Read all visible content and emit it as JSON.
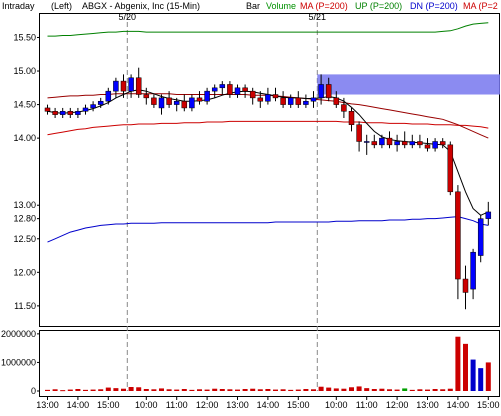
{
  "header": {
    "timeframe": "Intraday",
    "axis_side": "(Left)",
    "symbol_desc": "ABGX - Abgenix, Inc (15-Min)",
    "bar_label": "Bar",
    "volume_label": "Volume",
    "ma_label": "MA (P=200)",
    "up_label": "UP (P=200)",
    "dn_label": "DN (P=200)",
    "ma2_label": "MA (P=2"
  },
  "colors": {
    "up_candle": "#0000ff",
    "down_candle": "#cc0000",
    "ma_short": "#000000",
    "ma_long": "#cc0000",
    "upper_band": "#008000",
    "lower_band": "#0000cc",
    "highlight": "#7777ee",
    "volume_bar": "#cc0000",
    "volume_bar_up": "#0000cc",
    "volume_bar_green": "#00a000"
  },
  "chart_data": {
    "type": "candlestick",
    "title": "ABGX - Abgenix, Inc (15-Min)",
    "price_axis": {
      "ticks": [
        "15.50",
        "15.00",
        "14.50",
        "14.00",
        "13.00",
        "12.80",
        "12.50",
        "12.00",
        "11.50"
      ],
      "tick_values": [
        15.5,
        15.0,
        14.5,
        14.0,
        13.0,
        12.8,
        12.5,
        12.0,
        11.5
      ],
      "range": [
        11.2,
        15.85
      ]
    },
    "volume_axis": {
      "ticks": [
        "2000000",
        "1000000",
        "0"
      ],
      "tick_values": [
        2000000,
        1000000,
        0
      ],
      "range": [
        0,
        2100000
      ]
    },
    "time_axis": {
      "labels": [
        "13:00",
        "14:00",
        "15:00",
        "10:00",
        "11:00",
        "12:00",
        "13:00",
        "14:00",
        "15:00",
        "10:00",
        "11:00",
        "12:00",
        "13:00",
        "14:00",
        "15:00"
      ],
      "label_bar_index": [
        0,
        4,
        8,
        13,
        17,
        21,
        25,
        29,
        33,
        38,
        42,
        46,
        50,
        54,
        58
      ],
      "date_markers": [
        {
          "label": "5/20",
          "bar_index": 11
        },
        {
          "label": "5/21",
          "bar_index": 36
        }
      ]
    },
    "ohlc": [
      [
        14.45,
        14.5,
        14.35,
        14.4
      ],
      [
        14.4,
        14.45,
        14.3,
        14.35
      ],
      [
        14.35,
        14.45,
        14.3,
        14.4
      ],
      [
        14.4,
        14.45,
        14.3,
        14.35
      ],
      [
        14.35,
        14.45,
        14.3,
        14.4
      ],
      [
        14.4,
        14.5,
        14.35,
        14.45
      ],
      [
        14.45,
        14.55,
        14.4,
        14.5
      ],
      [
        14.5,
        14.6,
        14.45,
        14.55
      ],
      [
        14.55,
        14.75,
        14.5,
        14.7
      ],
      [
        14.7,
        14.9,
        14.6,
        14.85
      ],
      [
        14.85,
        14.95,
        14.6,
        14.7
      ],
      [
        14.7,
        14.95,
        14.6,
        14.9
      ],
      [
        14.9,
        15.05,
        14.6,
        14.65
      ],
      [
        14.65,
        14.75,
        14.5,
        14.6
      ],
      [
        14.6,
        14.65,
        14.45,
        14.5
      ],
      [
        14.45,
        14.65,
        14.35,
        14.6
      ],
      [
        14.6,
        14.7,
        14.45,
        14.5
      ],
      [
        14.5,
        14.6,
        14.4,
        14.55
      ],
      [
        14.55,
        14.65,
        14.4,
        14.45
      ],
      [
        14.45,
        14.65,
        14.4,
        14.6
      ],
      [
        14.6,
        14.7,
        14.5,
        14.55
      ],
      [
        14.55,
        14.75,
        14.5,
        14.7
      ],
      [
        14.7,
        14.8,
        14.6,
        14.75
      ],
      [
        14.75,
        14.85,
        14.65,
        14.8
      ],
      [
        14.8,
        14.85,
        14.6,
        14.65
      ],
      [
        14.65,
        14.8,
        14.6,
        14.75
      ],
      [
        14.75,
        14.8,
        14.6,
        14.7
      ],
      [
        14.7,
        14.75,
        14.5,
        14.6
      ],
      [
        14.6,
        14.7,
        14.45,
        14.55
      ],
      [
        14.55,
        14.75,
        14.5,
        14.65
      ],
      [
        14.65,
        14.75,
        14.55,
        14.6
      ],
      [
        14.6,
        14.7,
        14.45,
        14.5
      ],
      [
        14.5,
        14.65,
        14.45,
        14.6
      ],
      [
        14.6,
        14.7,
        14.45,
        14.5
      ],
      [
        14.5,
        14.65,
        14.45,
        14.55
      ],
      [
        14.55,
        14.7,
        14.45,
        14.6
      ],
      [
        14.6,
        14.95,
        14.5,
        14.8
      ],
      [
        14.8,
        14.9,
        14.55,
        14.6
      ],
      [
        14.6,
        14.7,
        14.45,
        14.5
      ],
      [
        14.5,
        14.6,
        14.3,
        14.4
      ],
      [
        14.4,
        14.45,
        14.1,
        14.2
      ],
      [
        14.2,
        14.25,
        13.8,
        13.95
      ],
      [
        13.95,
        14.05,
        13.75,
        13.95
      ],
      [
        13.95,
        14.05,
        13.85,
        13.9
      ],
      [
        13.9,
        14.05,
        13.85,
        14.0
      ],
      [
        14.0,
        14.1,
        13.85,
        13.9
      ],
      [
        13.9,
        14.05,
        13.8,
        13.95
      ],
      [
        13.95,
        14.1,
        13.85,
        13.9
      ],
      [
        13.9,
        14.05,
        13.85,
        13.95
      ],
      [
        13.95,
        14.05,
        13.85,
        13.9
      ],
      [
        13.9,
        14.0,
        13.8,
        13.85
      ],
      [
        13.85,
        14.0,
        13.8,
        13.95
      ],
      [
        13.95,
        14.0,
        13.85,
        13.9
      ],
      [
        13.9,
        13.95,
        13.15,
        13.2
      ],
      [
        13.2,
        13.3,
        11.6,
        11.9
      ],
      [
        11.9,
        12.1,
        11.45,
        11.7
      ],
      [
        11.75,
        12.35,
        11.6,
        12.3
      ],
      [
        12.25,
        12.85,
        12.15,
        12.8
      ],
      [
        12.8,
        13.05,
        12.7,
        12.9
      ]
    ],
    "ma_short": [
      14.4,
      14.38,
      14.37,
      14.38,
      14.39,
      14.41,
      14.44,
      14.48,
      14.53,
      14.6,
      14.65,
      14.7,
      14.72,
      14.7,
      14.66,
      14.62,
      14.59,
      14.57,
      14.55,
      14.55,
      14.56,
      14.57,
      14.6,
      14.64,
      14.67,
      14.69,
      14.7,
      14.69,
      14.67,
      14.65,
      14.63,
      14.61,
      14.6,
      14.6,
      14.59,
      14.59,
      14.6,
      14.62,
      14.6,
      14.55,
      14.46,
      14.35,
      14.22,
      14.1,
      14.02,
      13.98,
      13.96,
      13.95,
      13.94,
      13.93,
      13.92,
      13.91,
      13.9,
      13.8,
      13.5,
      13.2,
      12.95,
      12.85,
      12.9
    ],
    "ma_long": [
      14.05,
      14.07,
      14.09,
      14.11,
      14.13,
      14.14,
      14.16,
      14.17,
      14.18,
      14.19,
      14.2,
      14.2,
      14.21,
      14.21,
      14.21,
      14.22,
      14.22,
      14.22,
      14.23,
      14.23,
      14.23,
      14.24,
      14.24,
      14.24,
      14.25,
      14.25,
      14.25,
      14.25,
      14.25,
      14.25,
      14.25,
      14.25,
      14.25,
      14.25,
      14.25,
      14.25,
      14.25,
      14.25,
      14.25,
      14.24,
      14.24,
      14.24,
      14.23,
      14.23,
      14.23,
      14.22,
      14.22,
      14.22,
      14.21,
      14.21,
      14.21,
      14.2,
      14.2,
      14.2,
      14.19,
      14.19,
      14.18,
      14.17,
      14.15
    ],
    "ma_mid": [
      14.6,
      14.61,
      14.62,
      14.63,
      14.63,
      14.64,
      14.64,
      14.65,
      14.65,
      14.66,
      14.66,
      14.66,
      14.66,
      14.66,
      14.66,
      14.66,
      14.66,
      14.65,
      14.65,
      14.65,
      14.65,
      14.65,
      14.65,
      14.65,
      14.65,
      14.65,
      14.65,
      14.64,
      14.64,
      14.64,
      14.63,
      14.62,
      14.61,
      14.6,
      14.59,
      14.58,
      14.57,
      14.56,
      14.55,
      14.53,
      14.51,
      14.5,
      14.48,
      14.46,
      14.44,
      14.42,
      14.4,
      14.38,
      14.36,
      14.34,
      14.32,
      14.3,
      14.28,
      14.24,
      14.2,
      14.15,
      14.1,
      14.05,
      14.0
    ],
    "upper_band": [
      15.52,
      15.52,
      15.53,
      15.53,
      15.54,
      15.55,
      15.56,
      15.57,
      15.58,
      15.58,
      15.59,
      15.59,
      15.59,
      15.58,
      15.58,
      15.58,
      15.58,
      15.58,
      15.58,
      15.58,
      15.58,
      15.58,
      15.58,
      15.58,
      15.58,
      15.58,
      15.58,
      15.58,
      15.58,
      15.58,
      15.58,
      15.58,
      15.58,
      15.58,
      15.58,
      15.58,
      15.58,
      15.58,
      15.58,
      15.58,
      15.58,
      15.58,
      15.58,
      15.58,
      15.58,
      15.58,
      15.58,
      15.58,
      15.58,
      15.58,
      15.58,
      15.58,
      15.59,
      15.6,
      15.63,
      15.67,
      15.7,
      15.71,
      15.72
    ],
    "lower_band": [
      12.45,
      12.5,
      12.55,
      12.6,
      12.63,
      12.66,
      12.68,
      12.7,
      12.71,
      12.72,
      12.72,
      12.73,
      12.73,
      12.73,
      12.73,
      12.74,
      12.74,
      12.74,
      12.74,
      12.74,
      12.74,
      12.74,
      12.74,
      12.74,
      12.74,
      12.74,
      12.74,
      12.74,
      12.74,
      12.74,
      12.75,
      12.75,
      12.75,
      12.75,
      12.75,
      12.75,
      12.75,
      12.75,
      12.76,
      12.76,
      12.76,
      12.77,
      12.77,
      12.77,
      12.77,
      12.78,
      12.78,
      12.78,
      12.79,
      12.79,
      12.8,
      12.8,
      12.81,
      12.82,
      12.83,
      12.8,
      12.77,
      12.72,
      12.7
    ],
    "highlight_zone": {
      "start_bar": 36,
      "price_low": 14.65,
      "price_high": 14.95
    },
    "volume": [
      40000,
      60000,
      30000,
      50000,
      70000,
      40000,
      50000,
      60000,
      120000,
      100000,
      80000,
      140000,
      130000,
      70000,
      60000,
      90000,
      60000,
      50000,
      70000,
      40000,
      60000,
      50000,
      80000,
      70000,
      60000,
      50000,
      70000,
      80000,
      60000,
      70000,
      50000,
      60000,
      40000,
      50000,
      70000,
      60000,
      150000,
      120000,
      90000,
      80000,
      130000,
      160000,
      100000,
      70000,
      80000,
      60000,
      50000,
      90000,
      40000,
      60000,
      50000,
      70000,
      60000,
      80000,
      1900000,
      1650000,
      1100000,
      800000,
      1000000
    ],
    "volume_colors": [
      "r",
      "r",
      "r",
      "r",
      "r",
      "r",
      "r",
      "r",
      "r",
      "r",
      "r",
      "r",
      "r",
      "r",
      "r",
      "r",
      "r",
      "r",
      "r",
      "r",
      "r",
      "r",
      "r",
      "r",
      "r",
      "r",
      "r",
      "r",
      "r",
      "r",
      "r",
      "r",
      "r",
      "r",
      "r",
      "r",
      "r",
      "r",
      "r",
      "r",
      "r",
      "r",
      "r",
      "r",
      "r",
      "r",
      "r",
      "g",
      "r",
      "r",
      "r",
      "r",
      "r",
      "r",
      "r",
      "r",
      "b",
      "b",
      "r"
    ]
  }
}
